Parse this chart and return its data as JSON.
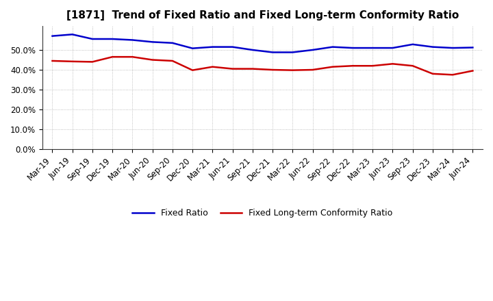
{
  "title": "[1871]  Trend of Fixed Ratio and Fixed Long-term Conformity Ratio",
  "x_labels": [
    "Mar-19",
    "Jun-19",
    "Sep-19",
    "Dec-19",
    "Mar-20",
    "Jun-20",
    "Sep-20",
    "Dec-20",
    "Mar-21",
    "Jun-21",
    "Sep-21",
    "Dec-21",
    "Mar-22",
    "Jun-22",
    "Sep-22",
    "Dec-22",
    "Mar-23",
    "Jun-23",
    "Sep-23",
    "Dec-23",
    "Mar-24",
    "Jun-24"
  ],
  "fixed_ratio": [
    57.0,
    57.8,
    55.5,
    55.5,
    55.0,
    54.0,
    53.5,
    50.8,
    51.5,
    51.5,
    50.0,
    48.8,
    48.8,
    50.0,
    51.5,
    51.0,
    51.0,
    51.0,
    52.8,
    51.5,
    51.0,
    51.2
  ],
  "fixed_lt_ratio": [
    44.5,
    44.2,
    44.0,
    46.5,
    46.5,
    45.0,
    44.5,
    39.8,
    41.5,
    40.5,
    40.5,
    40.0,
    39.8,
    40.0,
    41.5,
    42.0,
    42.0,
    43.0,
    42.0,
    38.0,
    37.5,
    39.5
  ],
  "fixed_ratio_color": "#0000cc",
  "fixed_lt_ratio_color": "#cc0000",
  "ylim": [
    0,
    62
  ],
  "yticks": [
    0,
    10,
    20,
    30,
    40,
    50
  ],
  "background_color": "#ffffff",
  "grid_color": "#999999",
  "title_fontsize": 11,
  "tick_fontsize": 8.5,
  "legend_fontsize": 9,
  "linewidth": 1.8
}
